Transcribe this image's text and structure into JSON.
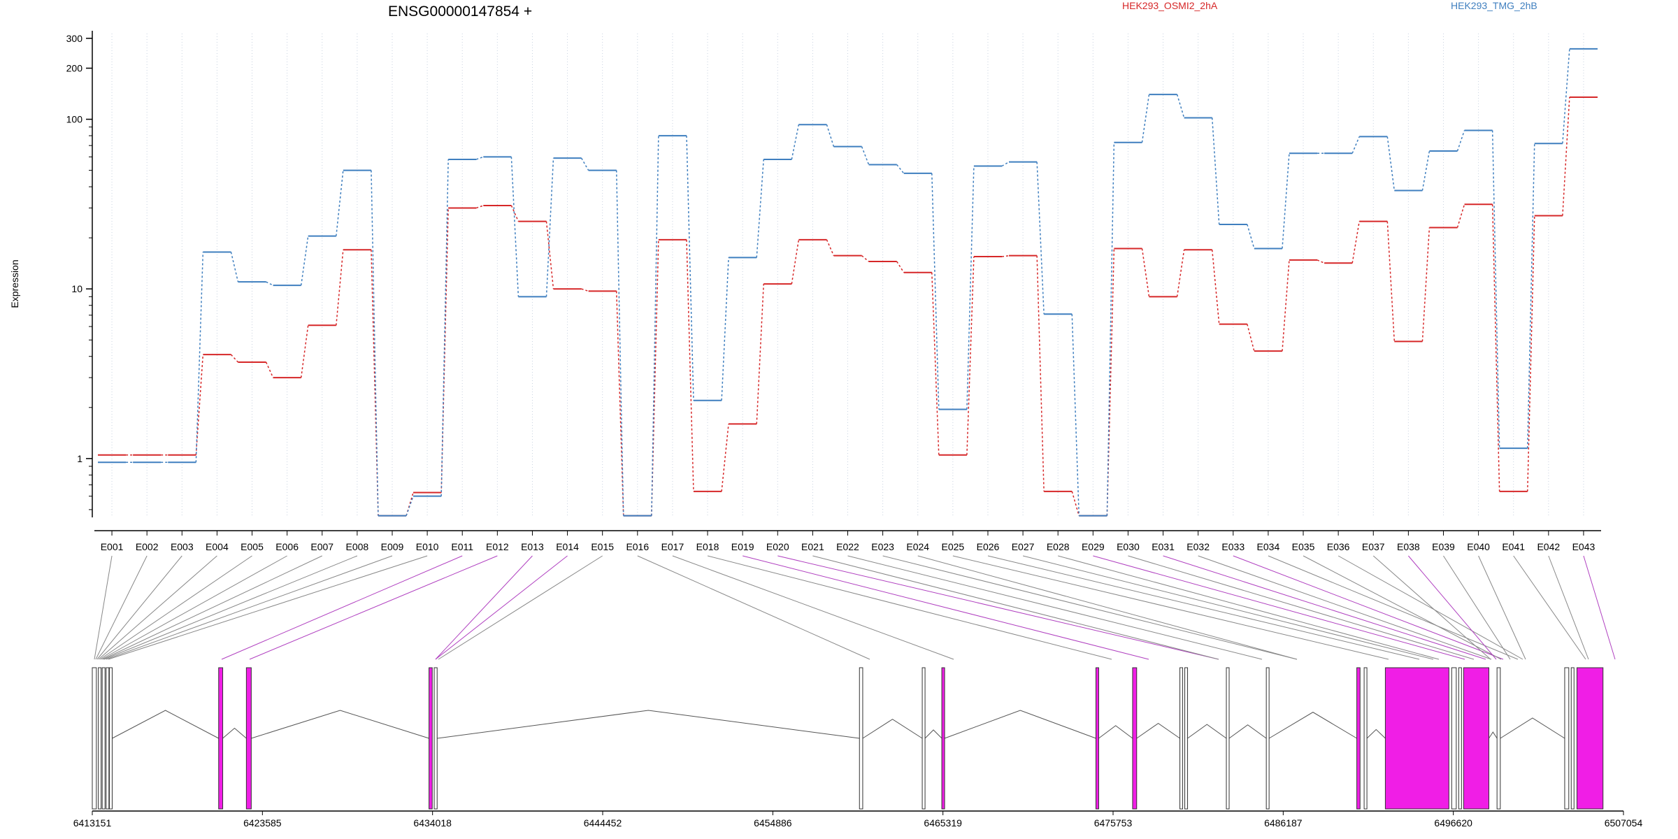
{
  "chart_data": {
    "type": "line",
    "title": "ENSG00000147854 +",
    "ylabel": "Expression",
    "yscale": "log",
    "ylim": [
      0.45,
      320
    ],
    "yticks": [
      1,
      10,
      100,
      200,
      300
    ],
    "ytick_labels": [
      "1",
      "10",
      "100",
      "200",
      "300"
    ],
    "grid": "vertical-dotted",
    "legend_position": "top",
    "categories": [
      "E001",
      "E002",
      "E003",
      "E004",
      "E005",
      "E006",
      "E007",
      "E008",
      "E009",
      "E010",
      "E011",
      "E012",
      "E013",
      "E014",
      "E015",
      "E016",
      "E017",
      "E018",
      "E019",
      "E020",
      "E021",
      "E022",
      "E023",
      "E024",
      "E025",
      "E026",
      "E027",
      "E028",
      "E029",
      "E030",
      "E031",
      "E032",
      "E033",
      "E034",
      "E035",
      "E036",
      "E037",
      "E038",
      "E039",
      "E040",
      "E041",
      "E042",
      "E043"
    ],
    "series": [
      {
        "name": "HEK293_OSMI2_2hA",
        "color": "#d62728",
        "values": [
          1.05,
          1.05,
          1.05,
          4.1,
          3.7,
          3.0,
          6.1,
          17.0,
          0.46,
          0.63,
          30.0,
          31.0,
          25.0,
          10.0,
          9.7,
          0.46,
          19.5,
          0.64,
          1.6,
          10.7,
          19.5,
          15.7,
          14.5,
          12.5,
          1.05,
          15.5,
          15.7,
          0.64,
          0.46,
          17.3,
          9.0,
          17.0,
          6.2,
          4.3,
          14.8,
          14.2,
          25.0,
          4.9,
          23.0,
          31.5,
          0.64,
          27.0,
          135.0
        ]
      },
      {
        "name": "HEK293_TMG_2hB",
        "color": "#3f7fbf",
        "values": [
          0.95,
          0.95,
          0.95,
          16.5,
          11.0,
          10.5,
          20.5,
          50.0,
          0.46,
          0.6,
          58.0,
          60.0,
          9.0,
          59.0,
          50.0,
          0.46,
          80.0,
          2.2,
          15.3,
          58.0,
          93.0,
          69.0,
          54.0,
          48.0,
          1.95,
          53.0,
          56.0,
          7.1,
          0.46,
          73.0,
          140.0,
          102.0,
          24.0,
          17.3,
          63.0,
          63.0,
          79.0,
          38.0,
          65.0,
          86.0,
          1.15,
          72.0,
          260.0
        ]
      }
    ],
    "gene_axis": {
      "tick_labels": [
        "6413151",
        "6423585",
        "6434018",
        "6444452",
        "6454886",
        "6465319",
        "6475753",
        "6486187",
        "6496620",
        "6507054"
      ],
      "range": [
        6413151,
        6507054
      ]
    },
    "colors": {
      "highlight": "#f01ee6",
      "connector_highlight": "#b040c0",
      "connector_normal": "#888888",
      "exon_outline": "#333333"
    }
  }
}
